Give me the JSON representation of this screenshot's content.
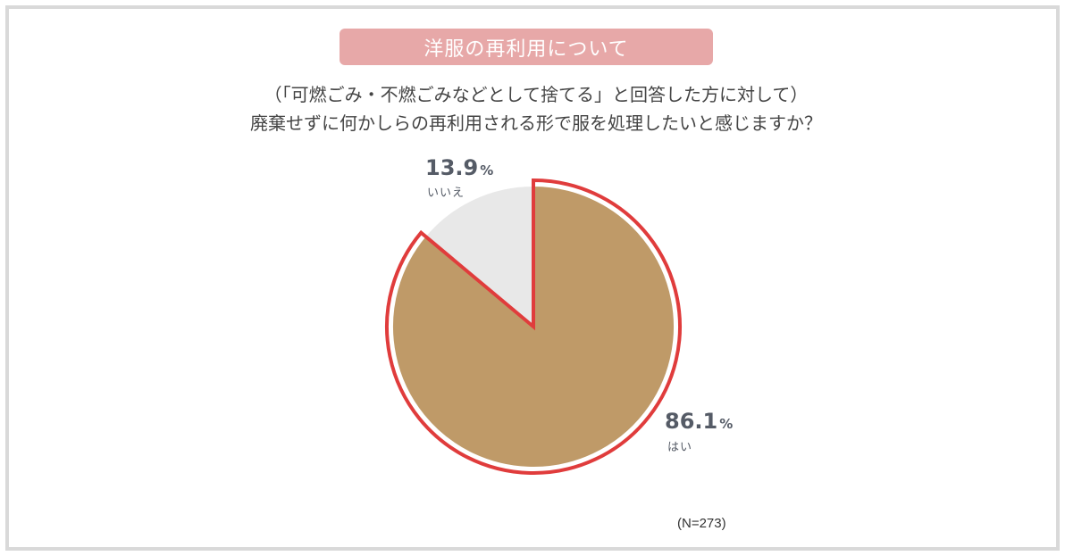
{
  "header": {
    "title": "洋服の再利用について",
    "question_line1": "（「可燃ごみ・不燃ごみなどとして捨てる」と回答した方に対して）",
    "question_line2": "廃棄せずに何かしらの再利用される形で服を処理したいと感じますか？"
  },
  "sample": "(N=273)",
  "colors": {
    "yes": "#bf9a68",
    "no": "#e8e8e8",
    "highlight": "#e03c3c",
    "title_bg": "#e7a8a8"
  },
  "chart_data": {
    "type": "pie",
    "title": "",
    "slices": [
      {
        "label": "はい",
        "value": 86.1,
        "value_text": "86.1",
        "unit": "%",
        "highlighted": true
      },
      {
        "label": "いいえ",
        "value": 13.9,
        "value_text": "13.9",
        "unit": "%",
        "highlighted": false
      }
    ],
    "start_angle_deg": 0,
    "direction": "clockwise"
  }
}
